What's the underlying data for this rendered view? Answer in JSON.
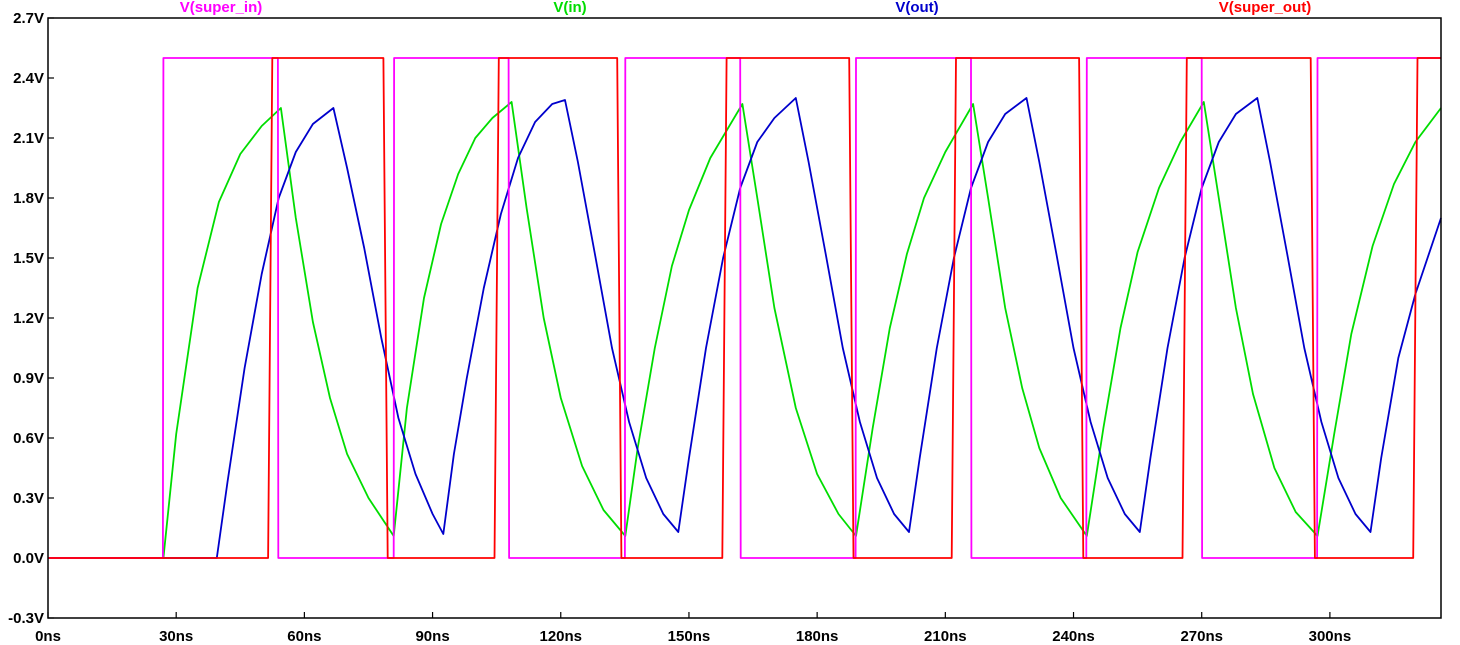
{
  "chart_data": {
    "type": "line",
    "title": "",
    "xlabel": "",
    "ylabel": "",
    "xlim": [
      0,
      326
    ],
    "ylim": [
      -0.3,
      2.7
    ],
    "x_ticks": [
      {
        "value": 0,
        "label": "0ns"
      },
      {
        "value": 30,
        "label": "30ns"
      },
      {
        "value": 60,
        "label": "60ns"
      },
      {
        "value": 90,
        "label": "90ns"
      },
      {
        "value": 120,
        "label": "120ns"
      },
      {
        "value": 150,
        "label": "150ns"
      },
      {
        "value": 180,
        "label": "180ns"
      },
      {
        "value": 210,
        "label": "210ns"
      },
      {
        "value": 240,
        "label": "240ns"
      },
      {
        "value": 270,
        "label": "270ns"
      },
      {
        "value": 300,
        "label": "300ns"
      }
    ],
    "y_ticks": [
      {
        "value": 2.7,
        "label": "2.7V"
      },
      {
        "value": 2.4,
        "label": "2.4V"
      },
      {
        "value": 2.1,
        "label": "2.1V"
      },
      {
        "value": 1.8,
        "label": "1.8V"
      },
      {
        "value": 1.5,
        "label": "1.5V"
      },
      {
        "value": 1.2,
        "label": "1.2V"
      },
      {
        "value": 0.9,
        "label": "0.9V"
      },
      {
        "value": 0.6,
        "label": "0.6V"
      },
      {
        "value": 0.3,
        "label": "0.3V"
      },
      {
        "value": 0.0,
        "label": "0.0V"
      },
      {
        "value": -0.3,
        "label": "-0.3V"
      }
    ],
    "grid": false,
    "legend_position": "top",
    "series": [
      {
        "name": "V(super_in)",
        "color": "#ff00ff",
        "x": [
          0,
          26.9,
          27.0,
          53.8,
          53.9,
          80.9,
          81.0,
          107.8,
          107.9,
          135.0,
          135.1,
          162.0,
          162.1,
          189.0,
          189.1,
          216.0,
          216.1,
          243.0,
          243.1,
          270.0,
          270.1,
          297.0,
          297.1,
          326.0
        ],
        "y": [
          0.0,
          0.0,
          2.5,
          2.5,
          0.0,
          0.0,
          2.5,
          2.5,
          0.0,
          0.0,
          2.5,
          2.5,
          0.0,
          0.0,
          2.5,
          2.5,
          0.0,
          0.0,
          2.5,
          2.5,
          0.0,
          0.0,
          2.5,
          2.5
        ]
      },
      {
        "name": "V(in)",
        "color": "#00dd00",
        "x": [
          0,
          27.0,
          30.0,
          35.0,
          40.0,
          45.0,
          50.0,
          54.5,
          58.0,
          62.0,
          66.0,
          70.0,
          75.0,
          80.9,
          84.0,
          88.0,
          92.0,
          96.0,
          100.0,
          104.0,
          108.5,
          112.0,
          116.0,
          120.0,
          125.0,
          130.0,
          135.1,
          138.0,
          142.0,
          146.0,
          150.0,
          155.0,
          162.5,
          166.0,
          170.0,
          175.0,
          180.0,
          185.0,
          189.1,
          193.0,
          197.0,
          201.0,
          205.0,
          210.0,
          216.5,
          220.0,
          224.0,
          228.0,
          232.0,
          237.0,
          243.1,
          247.0,
          251.0,
          255.0,
          260.0,
          265.0,
          270.5,
          274.0,
          278.0,
          282.0,
          287.0,
          292.0,
          297.1,
          301.0,
          305.0,
          310.0,
          315.0,
          320.0,
          326.0
        ],
        "y": [
          0.0,
          0.0,
          0.62,
          1.35,
          1.78,
          2.02,
          2.16,
          2.25,
          1.7,
          1.18,
          0.8,
          0.52,
          0.3,
          0.11,
          0.75,
          1.3,
          1.67,
          1.92,
          2.1,
          2.2,
          2.28,
          1.75,
          1.2,
          0.8,
          0.46,
          0.24,
          0.11,
          0.55,
          1.05,
          1.46,
          1.74,
          2.0,
          2.27,
          1.8,
          1.25,
          0.75,
          0.42,
          0.22,
          0.11,
          0.65,
          1.15,
          1.52,
          1.8,
          2.03,
          2.27,
          1.8,
          1.25,
          0.85,
          0.55,
          0.3,
          0.11,
          0.65,
          1.15,
          1.53,
          1.85,
          2.08,
          2.28,
          1.8,
          1.25,
          0.82,
          0.45,
          0.23,
          0.11,
          0.62,
          1.12,
          1.56,
          1.87,
          2.08,
          2.25
        ]
      },
      {
        "name": "V(out)",
        "color": "#0000cc",
        "x": [
          0,
          39.5,
          42.0,
          46.0,
          50.0,
          54.0,
          58.0,
          62.0,
          66.8,
          70.0,
          74.0,
          78.0,
          82.0,
          86.0,
          90.0,
          92.5,
          95.0,
          98.0,
          102.0,
          106.0,
          110.0,
          114.0,
          118.0,
          121.0,
          124.0,
          128.0,
          132.0,
          136.0,
          140.0,
          144.0,
          147.5,
          150.0,
          154.0,
          158.0,
          162.0,
          166.0,
          170.0,
          175.0,
          178.0,
          182.0,
          186.0,
          190.0,
          194.0,
          198.0,
          201.5,
          204.0,
          208.0,
          212.0,
          216.0,
          220.0,
          224.0,
          229.0,
          232.0,
          236.0,
          240.0,
          244.0,
          248.0,
          252.0,
          255.5,
          258.0,
          262.0,
          266.0,
          270.0,
          274.0,
          278.0,
          283.0,
          286.0,
          290.0,
          294.0,
          298.0,
          302.0,
          306.0,
          309.5,
          312.0,
          316.0,
          320.0,
          326.0
        ],
        "y": [
          0.0,
          0.0,
          0.38,
          0.95,
          1.42,
          1.8,
          2.03,
          2.17,
          2.25,
          1.95,
          1.55,
          1.1,
          0.7,
          0.42,
          0.22,
          0.12,
          0.52,
          0.9,
          1.35,
          1.72,
          2.0,
          2.18,
          2.27,
          2.29,
          1.98,
          1.52,
          1.05,
          0.68,
          0.4,
          0.22,
          0.13,
          0.5,
          1.05,
          1.5,
          1.85,
          2.08,
          2.2,
          2.3,
          1.98,
          1.52,
          1.05,
          0.68,
          0.4,
          0.22,
          0.13,
          0.5,
          1.05,
          1.5,
          1.85,
          2.08,
          2.22,
          2.3,
          1.98,
          1.52,
          1.05,
          0.68,
          0.4,
          0.22,
          0.13,
          0.5,
          1.05,
          1.5,
          1.85,
          2.08,
          2.22,
          2.3,
          1.98,
          1.52,
          1.05,
          0.68,
          0.4,
          0.22,
          0.13,
          0.5,
          1.0,
          1.32,
          1.7
        ]
      },
      {
        "name": "V(super_out)",
        "color": "#ff0000",
        "x": [
          0,
          51.5,
          52.5,
          78.5,
          79.5,
          104.5,
          105.5,
          133.2,
          134.2,
          157.8,
          158.8,
          187.5,
          188.5,
          211.5,
          212.5,
          241.3,
          242.3,
          265.5,
          266.5,
          295.5,
          296.5,
          319.5,
          320.5,
          326.0
        ],
        "y": [
          0.0,
          0.0,
          2.5,
          2.5,
          0.0,
          0.0,
          2.5,
          2.5,
          0.0,
          0.0,
          2.5,
          2.5,
          0.0,
          0.0,
          2.5,
          2.5,
          0.0,
          0.0,
          2.5,
          2.5,
          0.0,
          0.0,
          2.5,
          2.5
        ]
      }
    ]
  }
}
